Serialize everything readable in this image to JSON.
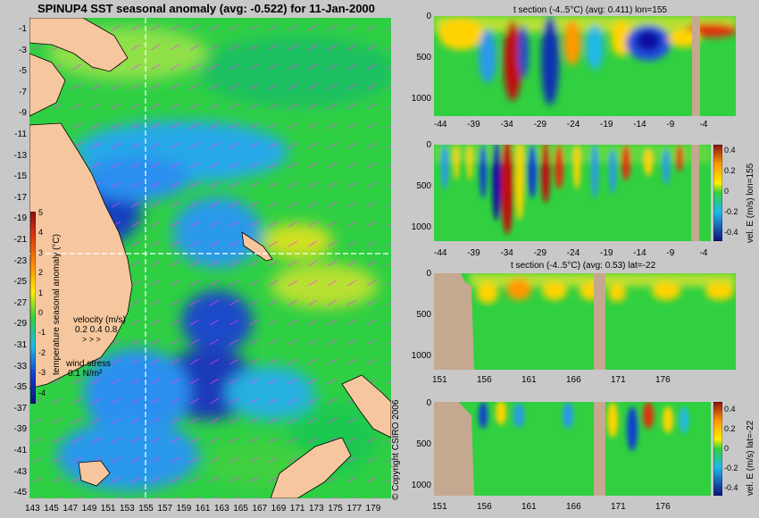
{
  "main_map": {
    "title": "SPINUP4 SST seasonal anomaly (avg: -0.522) for 11-Jan-2000",
    "lat_ticks": [
      "-1",
      "-3",
      "-5",
      "-7",
      "-9",
      "-11",
      "-13",
      "-15",
      "-17",
      "-19",
      "-21",
      "-23",
      "-25",
      "-27",
      "-29",
      "-31",
      "-33",
      "-35",
      "-37",
      "-39",
      "-41",
      "-43",
      "-45"
    ],
    "lon_ticks": [
      "143",
      "145",
      "147",
      "149",
      "151",
      "153",
      "155",
      "157",
      "159",
      "161",
      "163",
      "165",
      "167",
      "169",
      "171",
      "173",
      "175",
      "177",
      "179"
    ],
    "colorbar": {
      "label": "temperature seasonal anomaly (°C)",
      "ticks": [
        "5",
        "4",
        "3",
        "2",
        "1",
        "0",
        "-1",
        "-2",
        "-3",
        "-4"
      ],
      "range": [
        -4,
        5
      ]
    },
    "velocity_legend": {
      "label": "velocity (m/s)",
      "scale": "0.2 0.4 0.8"
    },
    "wind_legend": {
      "label": "wind stress",
      "scale": "0.1 N/m²"
    },
    "crosshair": {
      "lon": 155,
      "lat": -22
    }
  },
  "copyright": "© Copyright CSIRO 2006",
  "panels": [
    {
      "title": "t section (-4..5°C) (avg: 0.411) lon=155",
      "x_ticks": [
        "-44",
        "-39",
        "-34",
        "-29",
        "-24",
        "-19",
        "-14",
        "-9",
        "-4"
      ],
      "y_ticks": [
        "0",
        "500",
        "1000"
      ]
    },
    {
      "title": "",
      "x_ticks": [
        "-44",
        "-39",
        "-34",
        "-29",
        "-24",
        "-19",
        "-14",
        "-9",
        "-4"
      ],
      "y_ticks": [
        "0",
        "500",
        "1000"
      ],
      "colorbar": {
        "label": "vel. E (m/s) lon=155",
        "ticks": [
          "0.4",
          "0.2",
          "0",
          "-0.2",
          "-0.4"
        ]
      }
    },
    {
      "title": "t section (-4..5°C) (avg: 0.53) lat=-22",
      "x_ticks": [
        "151",
        "156",
        "161",
        "166",
        "171",
        "176"
      ],
      "y_ticks": [
        "0",
        "500",
        "1000"
      ]
    },
    {
      "title": "",
      "x_ticks": [
        "151",
        "156",
        "161",
        "166",
        "171",
        "176"
      ],
      "y_ticks": [
        "0",
        "500",
        "1000"
      ],
      "colorbar": {
        "label": "vel. E (m/s) lat=-22",
        "ticks": [
          "0.4",
          "0.2",
          "0",
          "-0.2",
          "-0.4"
        ]
      }
    }
  ],
  "colors": {
    "land": "#d9b48c",
    "ocean_mid": "#22c93c",
    "cold": "#1144cc",
    "warm": "#ffd400",
    "hot": "#c01010",
    "grey_bar": "#c4a890"
  }
}
